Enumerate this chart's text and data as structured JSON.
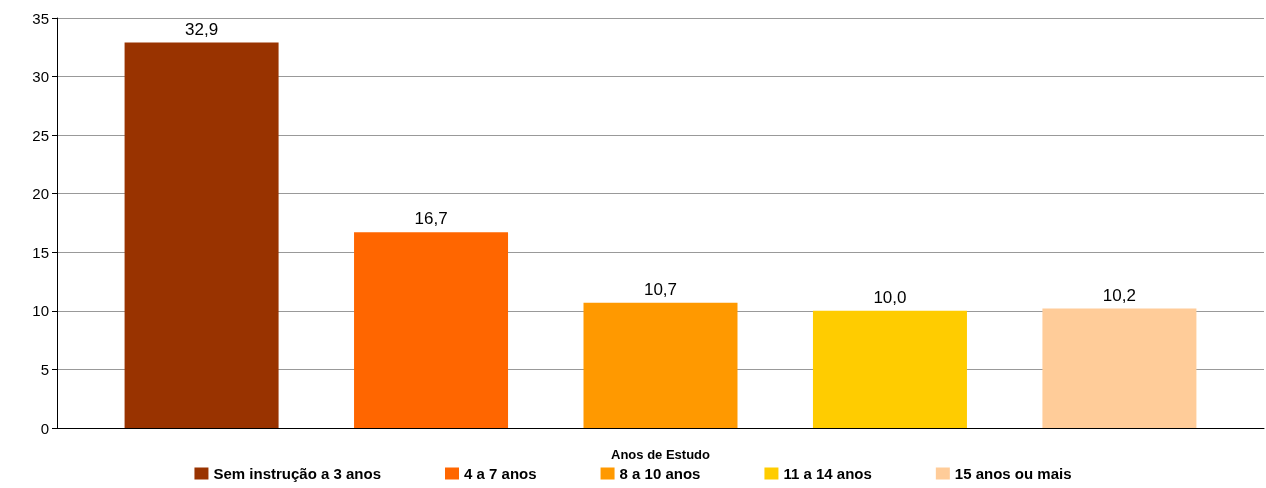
{
  "chart_data": {
    "type": "bar",
    "xlabel": "Anos de Estudo",
    "categories": [
      null
    ],
    "series": [
      {
        "name": "Sem instrução a 3 anos",
        "color": "#993300",
        "values": [
          32.9
        ],
        "value_labels": [
          "32,9"
        ]
      },
      {
        "name": "4 a 7 anos",
        "color": "#ff6600",
        "values": [
          16.7
        ],
        "value_labels": [
          "16,7"
        ]
      },
      {
        "name": "8 a 10 anos",
        "color": "#ff9900",
        "values": [
          10.7
        ],
        "value_labels": [
          "10,7"
        ]
      },
      {
        "name": "11 a 14 anos",
        "color": "#ffcc00",
        "values": [
          10.0
        ],
        "value_labels": [
          "10,0"
        ]
      },
      {
        "name": "15 anos ou mais",
        "color": "#ffcc99",
        "values": [
          10.2
        ],
        "value_labels": [
          "10,2"
        ]
      }
    ],
    "ylim": [
      0,
      35
    ],
    "yticks": [
      0,
      5,
      10,
      15,
      20,
      25,
      30,
      35
    ],
    "grid": "y",
    "legend": "bottom"
  }
}
